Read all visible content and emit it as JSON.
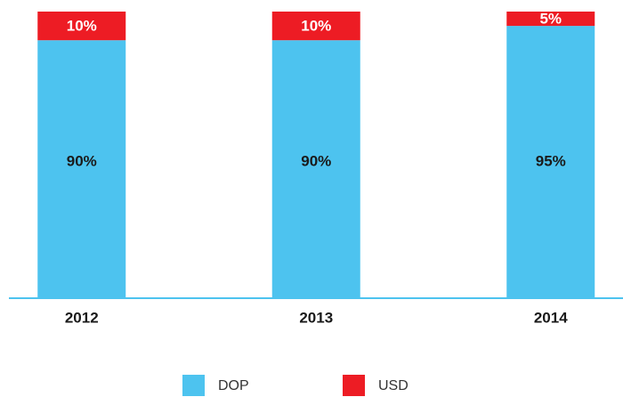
{
  "chart_data": {
    "type": "stacked_bar",
    "categories": [
      "2012",
      "2013",
      "2014"
    ],
    "series": [
      {
        "name": "DOP",
        "color": "#4dc3ef",
        "label_color": "#1a1a1a",
        "values": [
          90,
          90,
          95
        ],
        "value_labels": [
          "90%",
          "90%",
          "95%"
        ]
      },
      {
        "name": "USD",
        "color": "#ed1c24",
        "label_color": "#ffffff",
        "values": [
          10,
          10,
          5
        ],
        "value_labels": [
          "10%",
          "10%",
          "5%"
        ]
      }
    ],
    "ylim": [
      0,
      100
    ],
    "legend": "bottom"
  }
}
